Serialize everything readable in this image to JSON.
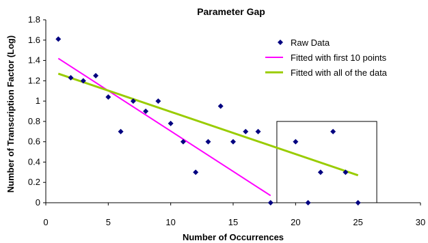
{
  "chart_data": {
    "type": "scatter",
    "title": "Parameter Gap",
    "xlabel": "Number of Occurrences",
    "ylabel": "Number of Transcription Factor (Log)",
    "xlim": [
      0,
      30
    ],
    "ylim": [
      0,
      1.8
    ],
    "x_ticks": [
      "0",
      "5",
      "10",
      "15",
      "20",
      "25",
      "30"
    ],
    "y_ticks": [
      "0",
      "0.2",
      "0.4",
      "0.6",
      "0.8",
      "1",
      "1.2",
      "1.4",
      "1.6",
      "1.8"
    ],
    "grid": false,
    "legend_position": "top-right",
    "series": [
      {
        "name": "Raw Data",
        "kind": "scatter",
        "color": "#000080",
        "points": [
          [
            1,
            1.61
          ],
          [
            2,
            1.23
          ],
          [
            3,
            1.2
          ],
          [
            4,
            1.25
          ],
          [
            5,
            1.04
          ],
          [
            6,
            0.7
          ],
          [
            7,
            1.0
          ],
          [
            8,
            0.9
          ],
          [
            9,
            1.0
          ],
          [
            10,
            0.78
          ],
          [
            11,
            0.6
          ],
          [
            12,
            0.3
          ],
          [
            13,
            0.6
          ],
          [
            14,
            0.95
          ],
          [
            15,
            0.6
          ],
          [
            16,
            0.7
          ],
          [
            17,
            0.7
          ],
          [
            18,
            0.0
          ],
          [
            20,
            0.6
          ],
          [
            21,
            0.0
          ],
          [
            22,
            0.3
          ],
          [
            23,
            0.7
          ],
          [
            24,
            0.3
          ],
          [
            25,
            0.0
          ]
        ]
      },
      {
        "name": "Fitted with first 10 points",
        "kind": "line",
        "color": "#ff00ff",
        "points": [
          [
            1,
            1.42
          ],
          [
            18,
            0.07
          ]
        ]
      },
      {
        "name": "Fitted with all of the data",
        "kind": "line",
        "color": "#99cc00",
        "points": [
          [
            1,
            1.27
          ],
          [
            25,
            0.27
          ]
        ]
      }
    ],
    "annotations": [
      {
        "kind": "rectangle",
        "x_range": [
          18.5,
          26.5
        ],
        "y_range": [
          0,
          0.8
        ]
      }
    ]
  }
}
